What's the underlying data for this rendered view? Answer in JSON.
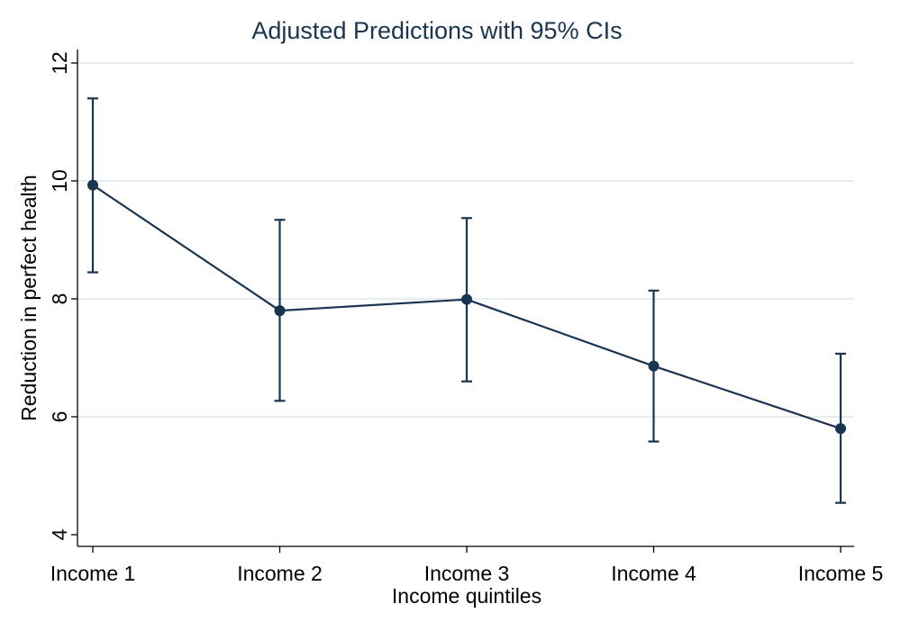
{
  "chart_data": {
    "type": "line",
    "title": "Adjusted Predictions with 95% CIs",
    "xlabel": "Income quintiles",
    "ylabel": "Reduction in perfect health",
    "categories": [
      "Income 1",
      "Income 2",
      "Income 3",
      "Income 4",
      "Income 5"
    ],
    "yticks": [
      4,
      6,
      8,
      10,
      12
    ],
    "ylim": [
      4,
      12
    ],
    "grid": true,
    "series": [
      {
        "values": [
          9.93,
          7.8,
          7.99,
          6.86,
          5.8
        ],
        "ci_lower": [
          8.45,
          6.27,
          6.6,
          5.58,
          4.54
        ],
        "ci_upper": [
          11.4,
          9.34,
          9.37,
          8.14,
          7.07
        ]
      }
    ],
    "colors": {
      "series": "#1a3552",
      "grid": "#e6ecef",
      "title": "#1a3552"
    }
  }
}
